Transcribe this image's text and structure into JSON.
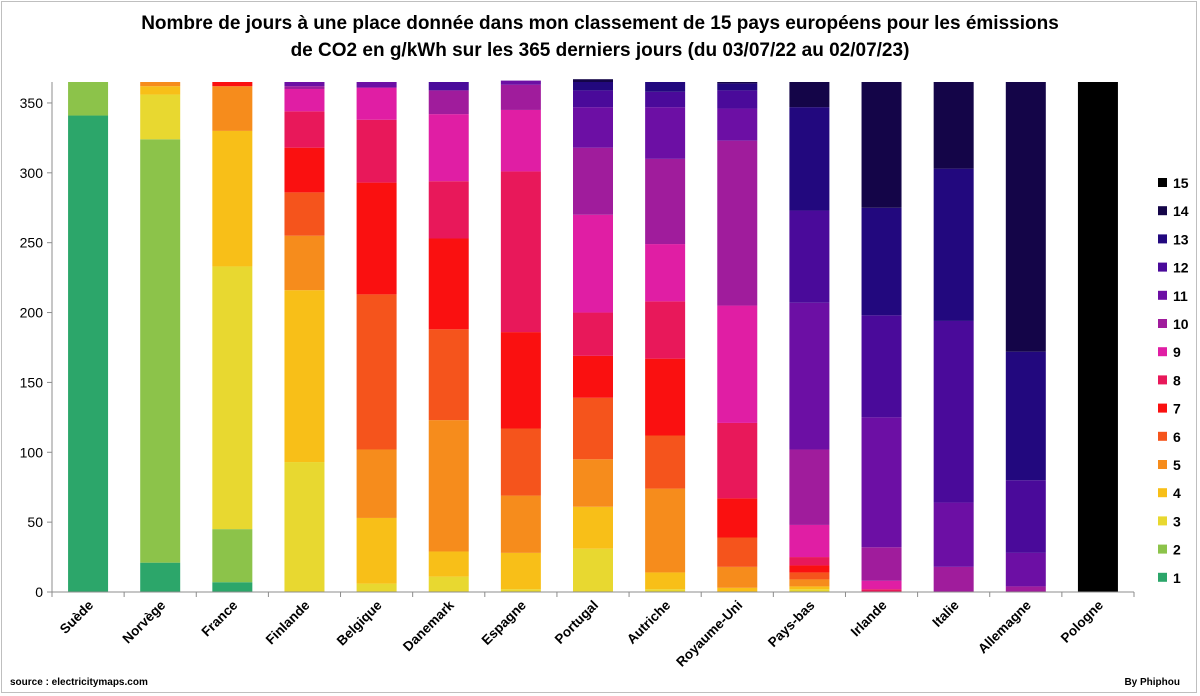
{
  "title_lines": [
    "Nombre de jours à une place donnée dans mon classement de 15 pays européens pour les émissions",
    "de CO2 en g/kWh sur les 365 derniers jours (du 03/07/22 au 02/07/23)"
  ],
  "source": "source : electricitymaps.com",
  "credit": "By Phiphou",
  "chart_data": {
    "type": "bar",
    "stacked": true,
    "title": "Nombre de jours à une place donnée dans mon classement de 15 pays européens pour les émissions de CO2 en g/kWh sur les 365 derniers jours (du 03/07/22 au 02/07/23)",
    "xlabel": "",
    "ylabel": "",
    "ylim": [
      0,
      365
    ],
    "yticks": [
      0,
      50,
      100,
      150,
      200,
      250,
      300,
      350
    ],
    "grid": false,
    "legend_position": "right",
    "categories": [
      "Suède",
      "Norvège",
      "France",
      "Finlande",
      "Belgique",
      "Danemark",
      "Espagne",
      "Portugal",
      "Autriche",
      "Royaume-Uni",
      "Pays-bas",
      "Irlande",
      "Italie",
      "Allemagne",
      "Pologne"
    ],
    "series": [
      {
        "name": "1",
        "color": "#2ca66a",
        "values": [
          341,
          21,
          7,
          0,
          0,
          0,
          0,
          0,
          0,
          0,
          0,
          0,
          0,
          0,
          0
        ]
      },
      {
        "name": "2",
        "color": "#8cc34a",
        "values": [
          24,
          303,
          38,
          0,
          0,
          0,
          0,
          0,
          0,
          0,
          0,
          0,
          0,
          0,
          0
        ]
      },
      {
        "name": "3",
        "color": "#e8d830",
        "values": [
          0,
          32,
          188,
          93,
          6,
          11,
          2,
          31,
          2,
          0,
          2,
          0,
          0,
          0,
          0
        ]
      },
      {
        "name": "4",
        "color": "#f8bf18",
        "values": [
          0,
          6,
          97,
          123,
          47,
          18,
          26,
          30,
          12,
          3,
          2,
          0,
          0,
          0,
          0
        ]
      },
      {
        "name": "5",
        "color": "#f68c1c",
        "values": [
          0,
          3,
          32,
          39,
          49,
          94,
          41,
          34,
          60,
          15,
          5,
          0,
          0,
          0,
          0
        ]
      },
      {
        "name": "6",
        "color": "#f5541c",
        "values": [
          0,
          0,
          0,
          31,
          111,
          65,
          48,
          44,
          38,
          21,
          5,
          0,
          0,
          0,
          0
        ]
      },
      {
        "name": "7",
        "color": "#fa1010",
        "values": [
          0,
          0,
          3,
          32,
          80,
          65,
          69,
          30,
          55,
          28,
          5,
          0,
          0,
          0,
          0
        ]
      },
      {
        "name": "8",
        "color": "#e8185a",
        "values": [
          0,
          0,
          0,
          26,
          45,
          41,
          115,
          31,
          41,
          54,
          6,
          2,
          0,
          0,
          0
        ]
      },
      {
        "name": "9",
        "color": "#e01ea4",
        "values": [
          0,
          0,
          0,
          16,
          23,
          48,
          44,
          70,
          41,
          84,
          23,
          6,
          0,
          0,
          0
        ]
      },
      {
        "name": "10",
        "color": "#a01c9c",
        "values": [
          0,
          0,
          0,
          2,
          0,
          17,
          18,
          48,
          61,
          118,
          54,
          24,
          18,
          4,
          0
        ]
      },
      {
        "name": "11",
        "color": "#6c0fa4",
        "values": [
          0,
          0,
          0,
          3,
          4,
          0,
          3,
          29,
          37,
          23,
          105,
          93,
          46,
          24,
          0
        ]
      },
      {
        "name": "12",
        "color": "#4a0a9a",
        "values": [
          0,
          0,
          0,
          0,
          0,
          6,
          0,
          12,
          11,
          13,
          66,
          73,
          130,
          52,
          0
        ]
      },
      {
        "name": "13",
        "color": "#22087e",
        "values": [
          0,
          0,
          0,
          0,
          0,
          0,
          0,
          6,
          7,
          5,
          74,
          77,
          109,
          92,
          0
        ]
      },
      {
        "name": "14",
        "color": "#140548",
        "values": [
          0,
          0,
          0,
          0,
          0,
          0,
          0,
          2,
          0,
          1,
          18,
          90,
          62,
          193,
          0
        ]
      },
      {
        "name": "15",
        "color": "#000000",
        "values": [
          0,
          0,
          0,
          0,
          0,
          0,
          0,
          0,
          0,
          0,
          0,
          0,
          0,
          0,
          365
        ]
      }
    ]
  }
}
